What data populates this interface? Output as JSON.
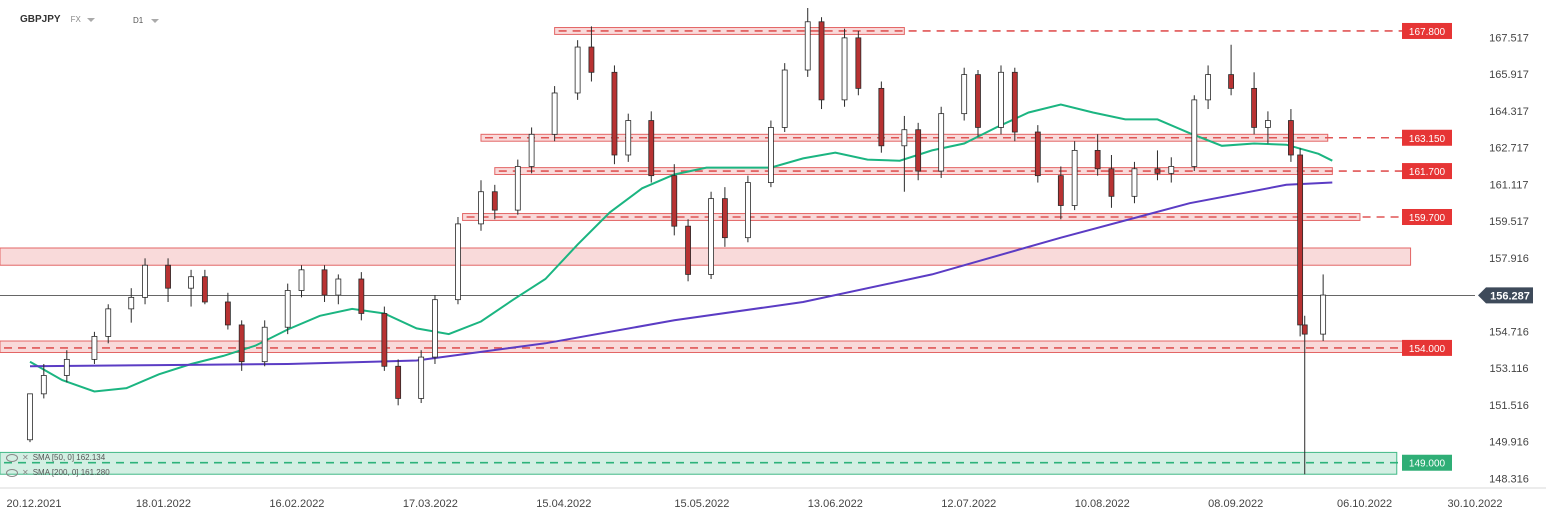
{
  "header": {
    "symbol": "GBPJPY",
    "market": "FX",
    "timeframe": "D1"
  },
  "indicators": [
    {
      "label": "SMA [50, 0] 162.134",
      "color": "#1bb581"
    },
    {
      "label": "SMA [200, 0] 161.280",
      "color": "#5b3cc4"
    }
  ],
  "colors": {
    "bull": "#3a5a3a",
    "bear": "#b83232",
    "zone": "#f9d6d6",
    "zone_border": "#e05555",
    "support_zone": "#cfeee1",
    "support_border": "#2db27a",
    "price_tag": "#e63535",
    "support_tag": "#2fae76"
  },
  "chart_data": {
    "type": "candlestick",
    "y_ticks": [
      "167.517",
      "165.917",
      "164.317",
      "162.717",
      "161.117",
      "159.517",
      "157.916",
      "156.287",
      "154.716",
      "153.116",
      "151.516",
      "149.916",
      "148.316"
    ],
    "y_range": [
      147.9,
      168.8
    ],
    "x_labels": [
      "20.12.2021",
      "18.01.2022",
      "16.02.2022",
      "17.03.2022",
      "15.04.2022",
      "15.05.2022",
      "13.06.2022",
      "12.07.2022",
      "10.08.2022",
      "08.09.2022",
      "06.10.2022",
      "30.10.2022"
    ],
    "x_range": [
      "2021-12-20",
      "2022-10-30"
    ],
    "current_price": "156.287",
    "levels": [
      {
        "label": "167.800",
        "value": 167.8,
        "zone": [
          167.65,
          167.95
        ],
        "from": "2022-04-13",
        "to": "2022-06-28",
        "type": "resistance"
      },
      {
        "label": "163.150",
        "value": 163.15,
        "zone": [
          163.0,
          163.3
        ],
        "from": "2022-03-28",
        "to": "2022-09-28",
        "type": "resistance"
      },
      {
        "label": "161.700",
        "value": 161.7,
        "zone": [
          161.55,
          161.85
        ],
        "from": "2022-03-31",
        "to": "2022-09-29",
        "type": "resistance"
      },
      {
        "label": "159.700",
        "value": 159.7,
        "zone": [
          159.55,
          159.85
        ],
        "from": "2022-03-24",
        "to": "2022-10-05",
        "type": "resistance"
      },
      {
        "label": "",
        "value": 158.0,
        "zone": [
          157.6,
          158.35
        ],
        "from": "2021-12-20",
        "to": "2022-10-16",
        "type": "zone"
      },
      {
        "label": "154.000",
        "value": 154.0,
        "zone": [
          153.8,
          154.3
        ],
        "from": "2021-12-20",
        "to": "2022-10-18",
        "type": "resistance"
      },
      {
        "label": "149.000",
        "value": 149.0,
        "zone": [
          148.5,
          149.45
        ],
        "from": "2021-12-20",
        "to": "2022-10-13",
        "type": "support"
      }
    ],
    "series": [
      {
        "name": "SMA [50, 0] 162.134",
        "points": [
          [
            "2021-12-20",
            153.4
          ],
          [
            "2021-12-27",
            152.6
          ],
          [
            "2022-01-03",
            152.1
          ],
          [
            "2022-01-10",
            152.25
          ],
          [
            "2022-01-17",
            152.85
          ],
          [
            "2022-01-24",
            153.3
          ],
          [
            "2022-01-31",
            153.65
          ],
          [
            "2022-02-07",
            154.1
          ],
          [
            "2022-02-14",
            154.8
          ],
          [
            "2022-02-21",
            155.4
          ],
          [
            "2022-02-28",
            155.7
          ],
          [
            "2022-03-07",
            155.5
          ],
          [
            "2022-03-14",
            154.85
          ],
          [
            "2022-03-21",
            154.6
          ],
          [
            "2022-03-28",
            155.15
          ],
          [
            "2022-04-04",
            156.1
          ],
          [
            "2022-04-11",
            157.0
          ],
          [
            "2022-04-18",
            158.5
          ],
          [
            "2022-04-25",
            159.9
          ],
          [
            "2022-05-02",
            160.95
          ],
          [
            "2022-05-09",
            161.55
          ],
          [
            "2022-05-16",
            161.85
          ],
          [
            "2022-05-23",
            161.85
          ],
          [
            "2022-05-30",
            161.85
          ],
          [
            "2022-06-06",
            162.25
          ],
          [
            "2022-06-13",
            162.5
          ],
          [
            "2022-06-20",
            162.2
          ],
          [
            "2022-06-27",
            162.15
          ],
          [
            "2022-07-04",
            162.6
          ],
          [
            "2022-07-11",
            162.9
          ],
          [
            "2022-07-18",
            163.6
          ],
          [
            "2022-07-25",
            164.25
          ],
          [
            "2022-08-01",
            164.6
          ],
          [
            "2022-08-08",
            164.25
          ],
          [
            "2022-08-15",
            163.95
          ],
          [
            "2022-08-22",
            163.95
          ],
          [
            "2022-08-29",
            163.35
          ],
          [
            "2022-09-05",
            162.8
          ],
          [
            "2022-09-12",
            162.9
          ],
          [
            "2022-09-19",
            162.85
          ],
          [
            "2022-09-26",
            162.45
          ],
          [
            "2022-09-29",
            162.15
          ]
        ]
      },
      {
        "name": "SMA [200, 0] 161.280",
        "points": [
          [
            "2021-12-20",
            153.2
          ],
          [
            "2022-01-17",
            153.25
          ],
          [
            "2022-02-14",
            153.3
          ],
          [
            "2022-03-14",
            153.45
          ],
          [
            "2022-04-11",
            154.2
          ],
          [
            "2022-05-09",
            155.2
          ],
          [
            "2022-06-06",
            156.0
          ],
          [
            "2022-07-04",
            157.2
          ],
          [
            "2022-08-01",
            158.8
          ],
          [
            "2022-08-29",
            160.3
          ],
          [
            "2022-09-19",
            161.1
          ],
          [
            "2022-09-29",
            161.2
          ]
        ]
      }
    ],
    "candles": [
      [
        "2021-12-20",
        150.0,
        152.0,
        149.9,
        152.0
      ],
      [
        "2021-12-23",
        152.0,
        153.3,
        151.8,
        152.8
      ],
      [
        "2021-12-28",
        152.8,
        153.9,
        152.5,
        153.5
      ],
      [
        "2022-01-03",
        153.5,
        154.7,
        153.3,
        154.5
      ],
      [
        "2022-01-06",
        154.5,
        155.9,
        154.2,
        155.7
      ],
      [
        "2022-01-11",
        155.7,
        156.6,
        155.1,
        156.2
      ],
      [
        "2022-01-14",
        156.2,
        157.9,
        155.9,
        157.6
      ],
      [
        "2022-01-19",
        157.6,
        157.9,
        156.0,
        156.6
      ],
      [
        "2022-01-24",
        156.6,
        157.4,
        155.8,
        157.1
      ],
      [
        "2022-01-27",
        157.1,
        157.4,
        155.9,
        156.0
      ],
      [
        "2022-02-01",
        156.0,
        156.4,
        154.8,
        155.0
      ],
      [
        "2022-02-04",
        155.0,
        155.2,
        153.0,
        153.4
      ],
      [
        "2022-02-09",
        153.4,
        155.2,
        153.2,
        154.9
      ],
      [
        "2022-02-14",
        154.9,
        156.8,
        154.6,
        156.5
      ],
      [
        "2022-02-17",
        156.5,
        157.6,
        156.2,
        157.4
      ],
      [
        "2022-02-22",
        157.4,
        157.6,
        156.0,
        156.3
      ],
      [
        "2022-02-25",
        156.3,
        157.2,
        155.9,
        157.0
      ],
      [
        "2022-03-02",
        157.0,
        157.3,
        155.2,
        155.5
      ],
      [
        "2022-03-07",
        155.5,
        155.8,
        153.0,
        153.2
      ],
      [
        "2022-03-10",
        153.2,
        153.5,
        151.5,
        151.8
      ],
      [
        "2022-03-15",
        151.8,
        153.9,
        151.6,
        153.6
      ],
      [
        "2022-03-18",
        153.6,
        156.3,
        153.3,
        156.1
      ],
      [
        "2022-03-23",
        156.1,
        159.7,
        155.9,
        159.4
      ],
      [
        "2022-03-28",
        159.4,
        161.3,
        159.1,
        160.8
      ],
      [
        "2022-03-31",
        160.8,
        161.1,
        159.6,
        160.0
      ],
      [
        "2022-04-05",
        160.0,
        162.2,
        159.8,
        161.9
      ],
      [
        "2022-04-08",
        161.9,
        163.6,
        161.6,
        163.3
      ],
      [
        "2022-04-13",
        163.3,
        165.4,
        163.0,
        165.1
      ],
      [
        "2022-04-18",
        165.1,
        167.4,
        164.8,
        167.1
      ],
      [
        "2022-04-21",
        167.1,
        168.0,
        165.6,
        166.0
      ],
      [
        "2022-04-26",
        166.0,
        166.3,
        162.0,
        162.4
      ],
      [
        "2022-04-29",
        162.4,
        164.2,
        162.1,
        163.9
      ],
      [
        "2022-05-04",
        163.9,
        164.3,
        161.2,
        161.5
      ],
      [
        "2022-05-09",
        161.5,
        162.0,
        158.9,
        159.3
      ],
      [
        "2022-05-12",
        159.3,
        159.6,
        156.9,
        157.2
      ],
      [
        "2022-05-17",
        157.2,
        160.8,
        157.0,
        160.5
      ],
      [
        "2022-05-20",
        160.5,
        161.0,
        158.4,
        158.8
      ],
      [
        "2022-05-25",
        158.8,
        161.5,
        158.6,
        161.2
      ],
      [
        "2022-05-30",
        161.2,
        163.9,
        161.0,
        163.6
      ],
      [
        "2022-06-02",
        163.6,
        166.4,
        163.4,
        166.1
      ],
      [
        "2022-06-07",
        166.1,
        168.8,
        165.8,
        168.2
      ],
      [
        "2022-06-10",
        168.2,
        168.4,
        164.4,
        164.8
      ],
      [
        "2022-06-15",
        164.8,
        167.9,
        164.5,
        167.5
      ],
      [
        "2022-06-18",
        167.5,
        167.8,
        165.0,
        165.3
      ],
      [
        "2022-06-23",
        165.3,
        165.6,
        162.5,
        162.8
      ],
      [
        "2022-06-28",
        162.8,
        164.1,
        160.8,
        163.5
      ],
      [
        "2022-07-01",
        163.5,
        163.8,
        161.3,
        161.7
      ],
      [
        "2022-07-06",
        161.7,
        164.5,
        161.4,
        164.2
      ],
      [
        "2022-07-11",
        164.2,
        166.2,
        163.9,
        165.9
      ],
      [
        "2022-07-14",
        165.9,
        166.1,
        163.2,
        163.6
      ],
      [
        "2022-07-19",
        163.6,
        166.3,
        163.3,
        166.0
      ],
      [
        "2022-07-22",
        166.0,
        166.2,
        163.0,
        163.4
      ],
      [
        "2022-07-27",
        163.4,
        163.7,
        161.2,
        161.5
      ],
      [
        "2022-08-01",
        161.5,
        161.9,
        159.6,
        160.2
      ],
      [
        "2022-08-04",
        160.2,
        163.0,
        160.0,
        162.6
      ],
      [
        "2022-08-09",
        162.6,
        163.3,
        161.5,
        161.8
      ],
      [
        "2022-08-12",
        161.8,
        162.4,
        160.1,
        160.6
      ],
      [
        "2022-08-17",
        160.6,
        162.1,
        160.3,
        161.8
      ],
      [
        "2022-08-22",
        161.8,
        162.6,
        161.3,
        161.6
      ],
      [
        "2022-08-25",
        161.6,
        162.3,
        161.2,
        161.9
      ],
      [
        "2022-08-30",
        161.9,
        165.0,
        161.7,
        164.8
      ],
      [
        "2022-09-02",
        164.8,
        166.3,
        164.4,
        165.9
      ],
      [
        "2022-09-07",
        165.9,
        167.2,
        165.0,
        165.3
      ],
      [
        "2022-09-12",
        165.3,
        166.0,
        163.3,
        163.6
      ],
      [
        "2022-09-15",
        163.6,
        164.3,
        162.9,
        163.9
      ],
      [
        "2022-09-20",
        163.9,
        164.4,
        162.1,
        162.4
      ],
      [
        "2022-09-22",
        162.4,
        162.7,
        154.5,
        155.0
      ],
      [
        "2022-09-23",
        155.0,
        155.4,
        148.5,
        154.6
      ],
      [
        "2022-09-27",
        154.6,
        157.2,
        154.3,
        156.3
      ]
    ]
  }
}
